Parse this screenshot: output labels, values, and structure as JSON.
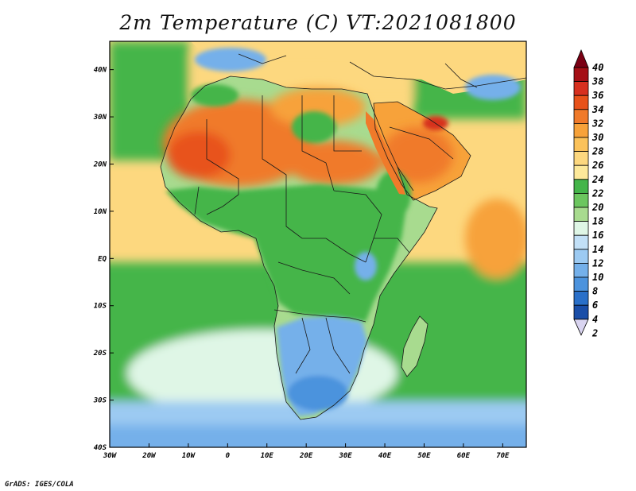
{
  "title": "2m Temperature (C) VT:2021081800",
  "credit": "GrADS: IGES/COLA",
  "map": {
    "lon_range": [
      -30,
      76
    ],
    "lat_range": [
      -40,
      46
    ],
    "lon_ticks": [
      {
        "value": -30,
        "label": "30W"
      },
      {
        "value": -20,
        "label": "20W"
      },
      {
        "value": -10,
        "label": "10W"
      },
      {
        "value": 0,
        "label": "0"
      },
      {
        "value": 10,
        "label": "10E"
      },
      {
        "value": 20,
        "label": "20E"
      },
      {
        "value": 30,
        "label": "30E"
      },
      {
        "value": 40,
        "label": "40E"
      },
      {
        "value": 50,
        "label": "50E"
      },
      {
        "value": 60,
        "label": "60E"
      },
      {
        "value": 70,
        "label": "70E"
      }
    ],
    "lat_ticks": [
      {
        "value": 40,
        "label": "40N"
      },
      {
        "value": 30,
        "label": "30N"
      },
      {
        "value": 20,
        "label": "20N"
      },
      {
        "value": 10,
        "label": "10N"
      },
      {
        "value": 0,
        "label": "EQ"
      },
      {
        "value": -10,
        "label": "10S"
      },
      {
        "value": -20,
        "label": "20S"
      },
      {
        "value": -30,
        "label": "30S"
      },
      {
        "value": -40,
        "label": "40S"
      }
    ]
  },
  "colorbar": {
    "labels": [
      "40",
      "38",
      "36",
      "34",
      "32",
      "30",
      "28",
      "26",
      "24",
      "22",
      "20",
      "18",
      "16",
      "14",
      "12",
      "10",
      "8",
      "6",
      "4",
      "2"
    ],
    "colors": [
      "#a50f15",
      "#d7301f",
      "#e8521a",
      "#f07a2a",
      "#f7a23a",
      "#fbc25a",
      "#fdd87f",
      "#fde99a",
      "#44b54a",
      "#6cc65f",
      "#a8db8f",
      "#dff6e6",
      "#c2e0f7",
      "#9ccaf2",
      "#74b0ea",
      "#4c93dd",
      "#2a70c9",
      "#1a4ea8"
    ],
    "top_color": "#7a0014",
    "bottom_color": "#d9d4f0"
  },
  "fields": {
    "ocean_base": "#fdd87f",
    "sahara_hot": "#f07a2a",
    "sahara_core": "#e8521a",
    "sahel": "#f7a23a",
    "green": "#44b54a",
    "light_green": "#a8db8f",
    "cool_south": "#74b0ea",
    "cold_south": "#4c93dd",
    "southern_ocean": "#9ccaf2",
    "pale": "#dff6e6",
    "gulf_hot": "#d7301f",
    "line": "#1a1a1a"
  }
}
